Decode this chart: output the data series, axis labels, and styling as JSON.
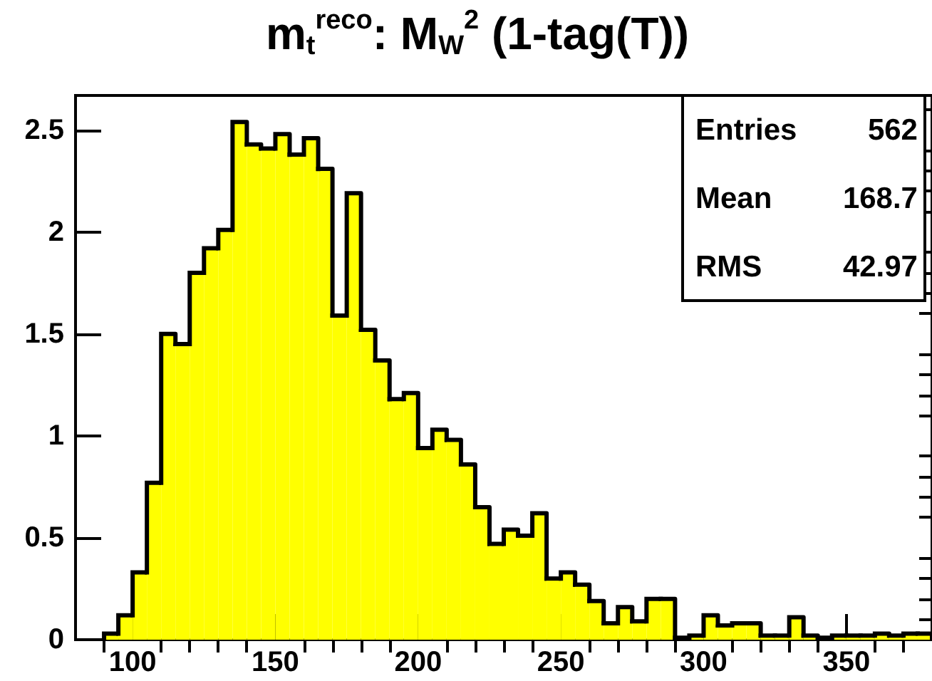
{
  "chart_data": {
    "type": "histogram",
    "title": "m$_{t}$$^{reco}$: M$_{W}$$^{2}$ (1-tag(T))",
    "bins": [
      80,
      85,
      90,
      95,
      100,
      105,
      110,
      115,
      120,
      125,
      130,
      135,
      140,
      145,
      150,
      155,
      160,
      165,
      170,
      175,
      180,
      185,
      190,
      195,
      200,
      205,
      210,
      215,
      220,
      225,
      230,
      235,
      240,
      245,
      250,
      255,
      260,
      265,
      270,
      275,
      280,
      285,
      290,
      295,
      300,
      305,
      310,
      315,
      320,
      325,
      330,
      335,
      340,
      345,
      350,
      355,
      360,
      365,
      370,
      375,
      380
    ],
    "values": [
      0,
      0,
      0.03,
      0.12,
      0.33,
      0.77,
      1.5,
      1.45,
      1.8,
      1.92,
      2.01,
      2.54,
      2.43,
      2.41,
      2.48,
      2.38,
      2.46,
      2.31,
      1.59,
      2.19,
      1.52,
      1.37,
      1.18,
      1.21,
      0.94,
      1.03,
      0.98,
      0.86,
      0.65,
      0.47,
      0.54,
      0.51,
      0.62,
      0.3,
      0.33,
      0.27,
      0.19,
      0.08,
      0.16,
      0.09,
      0.2,
      0.2,
      0.01,
      0.02,
      0.12,
      0.07,
      0.08,
      0.08,
      0.02,
      0.02,
      0.11,
      0.02,
      0.01,
      0.02,
      0.02,
      0.02,
      0.03,
      0.02,
      0.03,
      0.03
    ],
    "color": "#ffff00",
    "xlim": [
      80,
      380
    ],
    "xticks": [
      {
        "value": 90,
        "label": null
      },
      100,
      {
        "value": 110,
        "label": null
      },
      {
        "value": 120,
        "label": null
      },
      {
        "value": 130,
        "label": null
      },
      {
        "value": 140,
        "label": null
      },
      150,
      {
        "value": 160,
        "label": null
      },
      {
        "value": 170,
        "label": null
      },
      {
        "value": 180,
        "label": null
      },
      {
        "value": 190,
        "label": null
      },
      200,
      {
        "value": 210,
        "label": null
      },
      {
        "value": 220,
        "label": null
      },
      {
        "value": 230,
        "label": null
      },
      {
        "value": 240,
        "label": null
      },
      250,
      {
        "value": 260,
        "label": null
      },
      {
        "value": 270,
        "label": null
      },
      {
        "value": 280,
        "label": null
      },
      {
        "value": 290,
        "label": null
      },
      300,
      {
        "value": 310,
        "label": null
      },
      {
        "value": 320,
        "label": null
      },
      {
        "value": 330,
        "label": null
      },
      {
        "value": 340,
        "label": null
      },
      350,
      {
        "value": 360,
        "label": null
      },
      {
        "value": 370,
        "label": null
      }
    ],
    "ylim": [
      0,
      2.67
    ],
    "yticks": [
      0,
      {
        "value": 0.1,
        "label": null
      },
      {
        "value": 0.2,
        "label": null
      },
      {
        "value": 0.3,
        "label": null
      },
      {
        "value": 0.4,
        "label": null
      },
      0.5,
      {
        "value": 0.6,
        "label": null
      },
      {
        "value": 0.7,
        "label": null
      },
      {
        "value": 0.8,
        "label": null
      },
      {
        "value": 0.9,
        "label": null
      },
      1,
      {
        "value": 1.1,
        "label": null
      },
      {
        "value": 1.2,
        "label": null
      },
      {
        "value": 1.3,
        "label": null
      },
      {
        "value": 1.4,
        "label": null
      },
      1.5,
      {
        "value": 1.6,
        "label": null
      },
      {
        "value": 1.7,
        "label": null
      },
      {
        "value": 1.8,
        "label": null
      },
      {
        "value": 1.9,
        "label": null
      },
      2,
      {
        "value": 2.1,
        "label": null
      },
      {
        "value": 2.2,
        "label": null
      },
      {
        "value": 2.3,
        "label": null
      },
      {
        "value": 2.4,
        "label": null
      },
      2.5,
      {
        "value": 2.6,
        "label": null
      }
    ],
    "annotations": [
      "Entries",
      "562",
      "Mean",
      "168.7",
      "RMS",
      "42.97"
    ],
    "grid": false
  }
}
